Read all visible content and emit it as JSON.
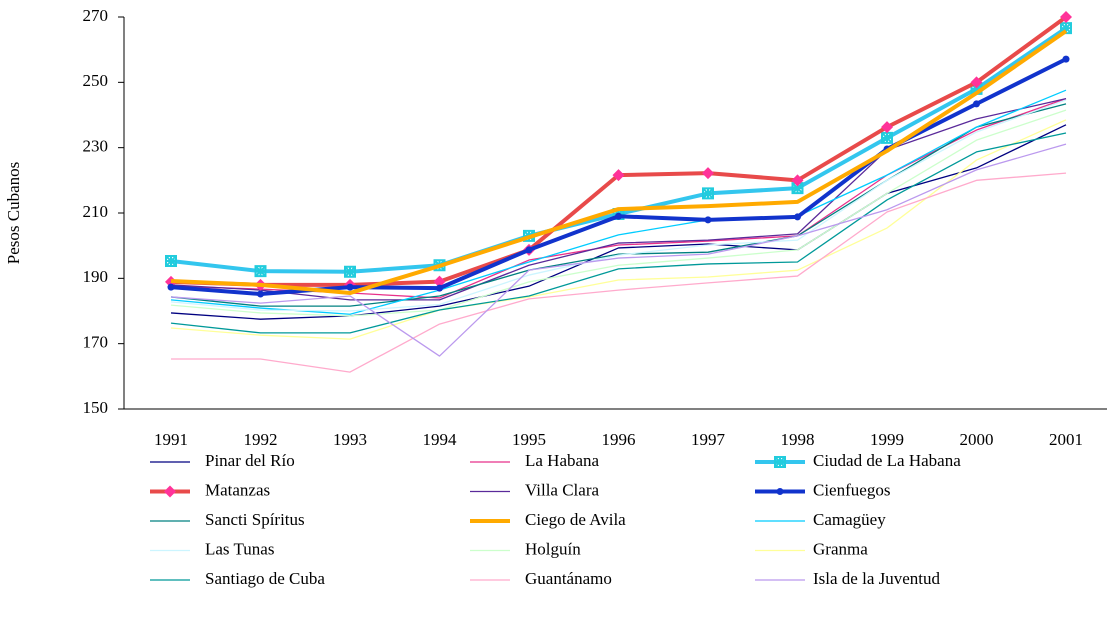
{
  "chart_data": {
    "type": "line",
    "y_label": "Pesos Cubanos",
    "categories": [
      "1991",
      "1992",
      "1993",
      "1994",
      "1995",
      "1996",
      "1997",
      "1998",
      "1999",
      "2000",
      "2001"
    ],
    "ylim": [
      150,
      270
    ],
    "yticks": [
      150,
      170,
      190,
      210,
      230,
      250,
      270
    ],
    "grid": false,
    "legend": "bottom",
    "series": [
      {
        "name": "Pinar del Río",
        "color": "#000080",
        "width": 1.3,
        "values": [
          179.4,
          177.5,
          178.5,
          181.5,
          187.6,
          199.3,
          200.5,
          198.7,
          216,
          223.8,
          237
        ]
      },
      {
        "name": "La Habana",
        "color": "#e8308a",
        "width": 1.3,
        "values": [
          187.6,
          186.7,
          185.5,
          184,
          195.6,
          200.2,
          201.4,
          203,
          221.6,
          235.4,
          245
        ]
      },
      {
        "name": "Ciudad de La Habana",
        "color": "#33c6ee",
        "width": 4,
        "marker": "star",
        "marker_color": "#22ccdd",
        "values": [
          195.3,
          192.2,
          192,
          194,
          203,
          209.7,
          216,
          217.6,
          233,
          248,
          266.6
        ]
      },
      {
        "name": "Matanzas",
        "color": "#e84a4a",
        "width": 4,
        "marker": "diamond",
        "marker_color": "#ff3399",
        "values": [
          188.9,
          188,
          188,
          189,
          198.7,
          221.6,
          222.2,
          220,
          236.3,
          250,
          270
        ]
      },
      {
        "name": "Villa Clara",
        "color": "#5a2a9a",
        "width": 1.3,
        "values": [
          188,
          186.4,
          183.4,
          183.4,
          194,
          200.8,
          201.7,
          203.6,
          229.3,
          238.8,
          245
        ]
      },
      {
        "name": "Cienfuegos",
        "color": "#1133cc",
        "width": 4,
        "marker": "circle",
        "marker_color": "#1133cc",
        "values": [
          187.3,
          185.2,
          187.3,
          187,
          198.7,
          209,
          207.9,
          208.8,
          229.6,
          243.4,
          257.1
        ]
      },
      {
        "name": "Sancti Spíritus",
        "color": "#008080",
        "width": 1.3,
        "values": [
          184.3,
          181.5,
          181.5,
          184.6,
          192.5,
          197.4,
          198,
          203,
          220,
          236.3,
          243.4
        ]
      },
      {
        "name": "Ciego de Avila",
        "color": "#ffaa00",
        "width": 4,
        "values": [
          189.2,
          188,
          185.5,
          193.8,
          202.6,
          211.2,
          212.1,
          213.4,
          229,
          246.7,
          265.7
        ]
      },
      {
        "name": "Camagüey",
        "color": "#00ccff",
        "width": 1.3,
        "values": [
          183.4,
          180.9,
          179,
          186.4,
          195,
          203.3,
          207.9,
          209,
          221.6,
          236.3,
          247.6
        ]
      },
      {
        "name": "Las Tunas",
        "color": "#ccf5ff",
        "width": 1.3,
        "values": [
          182.8,
          180.3,
          180,
          182,
          191,
          197.1,
          200.2,
          201.7,
          220,
          234.8,
          244.6
        ]
      },
      {
        "name": "Holguín",
        "color": "#ccffcc",
        "width": 1.3,
        "values": [
          181.8,
          179.4,
          178.5,
          180.3,
          188.9,
          194,
          196.2,
          198.7,
          216,
          232.3,
          241.5
        ]
      },
      {
        "name": "Granma",
        "color": "#ffff99",
        "width": 1.3,
        "values": [
          174.8,
          172.6,
          171.4,
          180.3,
          184.3,
          189.5,
          190.4,
          192.5,
          205.4,
          226.2,
          238.5
        ]
      },
      {
        "name": "Santiago de Cuba",
        "color": "#009999",
        "width": 1.3,
        "values": [
          176.3,
          173.3,
          173.3,
          180.3,
          184.6,
          192.9,
          194.4,
          195,
          214,
          228.7,
          234.5
        ]
      },
      {
        "name": "Guantánamo",
        "color": "#ffaacc",
        "width": 1.3,
        "values": [
          165.3,
          165.3,
          161.3,
          176,
          183.7,
          186.4,
          188.6,
          190.7,
          210.3,
          220,
          222.2
        ]
      },
      {
        "name": "Isla de la Juventud",
        "color": "#bb99ee",
        "width": 1.3,
        "values": [
          184.3,
          182.4,
          184.6,
          166.2,
          192.5,
          196.2,
          197.4,
          203,
          211,
          223.2,
          231.1
        ]
      }
    ]
  }
}
